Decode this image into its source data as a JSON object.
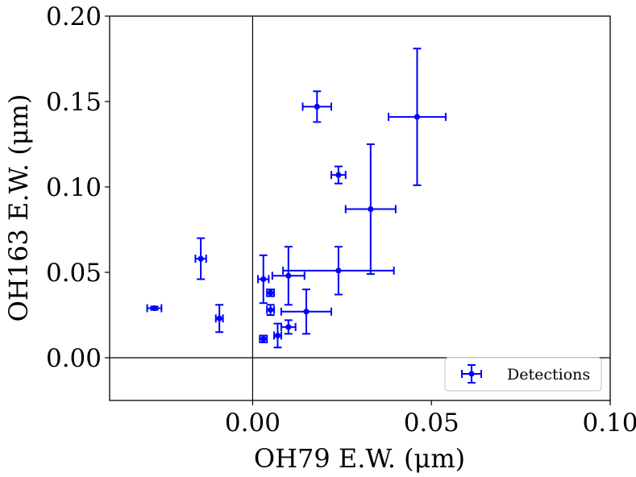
{
  "chart_data": {
    "type": "scatter",
    "title": "",
    "xlabel": "OH79 E.W. (μm)",
    "ylabel": "OH163 E.W. (μm)",
    "xlim": [
      -0.04,
      0.1
    ],
    "ylim": [
      -0.025,
      0.2
    ],
    "xticks": [
      0.0,
      0.05,
      0.1
    ],
    "xtick_labels": [
      "0.00",
      "0.05",
      "0.10"
    ],
    "yticks": [
      0.0,
      0.05,
      0.1,
      0.15,
      0.2
    ],
    "ytick_labels": [
      "0.00",
      "0.05",
      "0.10",
      "0.15",
      "0.20"
    ],
    "reference_lines": {
      "x": 0,
      "y": 0
    },
    "grid": false,
    "legend": {
      "location": "lower-right",
      "entries": [
        "Detections"
      ]
    },
    "series": [
      {
        "name": "Detections",
        "color": "#0000ff",
        "points": [
          {
            "x": -0.0275,
            "y": 0.029,
            "xerr": 0.002,
            "yerr": 0.001
          },
          {
            "x": -0.0145,
            "y": 0.058,
            "xerr": 0.0015,
            "yerr": 0.012
          },
          {
            "x": -0.0093,
            "y": 0.023,
            "xerr": 0.001,
            "yerr": 0.008
          },
          {
            "x": 0.003,
            "y": 0.046,
            "xerr": 0.0015,
            "yerr": 0.014
          },
          {
            "x": 0.003,
            "y": 0.011,
            "xerr": 0.001,
            "yerr": 0.002
          },
          {
            "x": 0.005,
            "y": 0.038,
            "xerr": 0.001,
            "yerr": 0.002
          },
          {
            "x": 0.005,
            "y": 0.028,
            "xerr": 0.001,
            "yerr": 0.003
          },
          {
            "x": 0.007,
            "y": 0.013,
            "xerr": 0.001,
            "yerr": 0.007
          },
          {
            "x": 0.01,
            "y": 0.018,
            "xerr": 0.002,
            "yerr": 0.004
          },
          {
            "x": 0.01,
            "y": 0.048,
            "xerr": 0.0045,
            "yerr": 0.017
          },
          {
            "x": 0.015,
            "y": 0.027,
            "xerr": 0.007,
            "yerr": 0.013
          },
          {
            "x": 0.018,
            "y": 0.147,
            "xerr": 0.004,
            "yerr": 0.009
          },
          {
            "x": 0.024,
            "y": 0.107,
            "xerr": 0.002,
            "yerr": 0.005
          },
          {
            "x": 0.024,
            "y": 0.051,
            "xerr": 0.0155,
            "yerr": 0.014
          },
          {
            "x": 0.033,
            "y": 0.087,
            "xerr": 0.007,
            "yerr": 0.038
          },
          {
            "x": 0.046,
            "y": 0.141,
            "xerr": 0.008,
            "yerr": 0.04
          }
        ]
      }
    ]
  }
}
